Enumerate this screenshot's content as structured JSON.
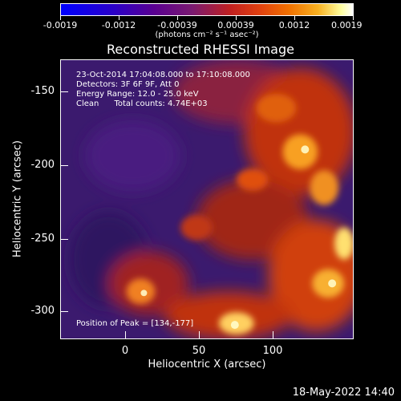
{
  "colorbar": {
    "tick_labels": [
      "-0.0019",
      "-0.0012",
      "-0.00039",
      "0.00039",
      "0.0012",
      "0.0019"
    ],
    "unit_label": "(photons cm⁻² s⁻¹ asec⁻²)"
  },
  "plot": {
    "title": "Reconstructed RHESSI Image",
    "annotations": {
      "time_range": "23-Oct-2014 17:04:08.000 to 17:10:08.000",
      "detectors": "Detectors: 3F 6F 9F, Att 0",
      "energy_range": "Energy Range: 12.0 - 25.0 keV",
      "algorithm": "Clean      Total counts: 4.74E+03",
      "peak": "Position of Peak = [134,-177]"
    },
    "xlabel": "Heliocentric X (arcsec)",
    "ylabel": "Heliocentric Y (arcsec)",
    "x_ticks": [
      "0",
      "50",
      "100"
    ],
    "y_ticks": [
      "-150",
      "-200",
      "-250",
      "-300"
    ]
  },
  "footer": {
    "timestamp": "18-May-2022 14:40"
  }
}
